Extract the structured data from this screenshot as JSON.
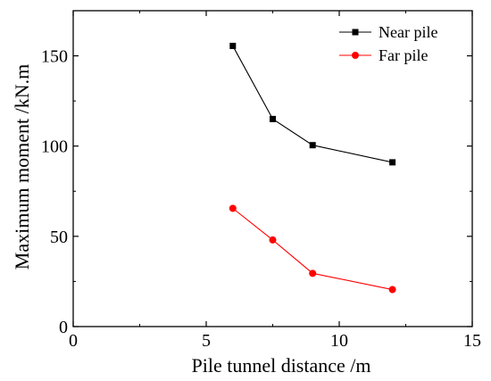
{
  "chart_data": {
    "type": "line",
    "xlabel": "Pile tunnel distance /m",
    "ylabel": "Maximum moment /kN.m",
    "xlim": [
      0,
      15
    ],
    "ylim": [
      0,
      175
    ],
    "xticks": [
      0,
      5,
      10,
      15
    ],
    "yticks": [
      0,
      50,
      100,
      150
    ],
    "grid": false,
    "legend_position": "top-right",
    "series": [
      {
        "name": "Near pile",
        "color": "#000000",
        "marker": "square",
        "x": [
          6,
          7.5,
          9,
          12
        ],
        "y": [
          155.5,
          115,
          100.5,
          91
        ]
      },
      {
        "name": "Far pile",
        "color": "#ff0000",
        "marker": "circle",
        "x": [
          6,
          7.5,
          9,
          12
        ],
        "y": [
          65.5,
          48,
          29.5,
          20.5
        ]
      }
    ]
  }
}
